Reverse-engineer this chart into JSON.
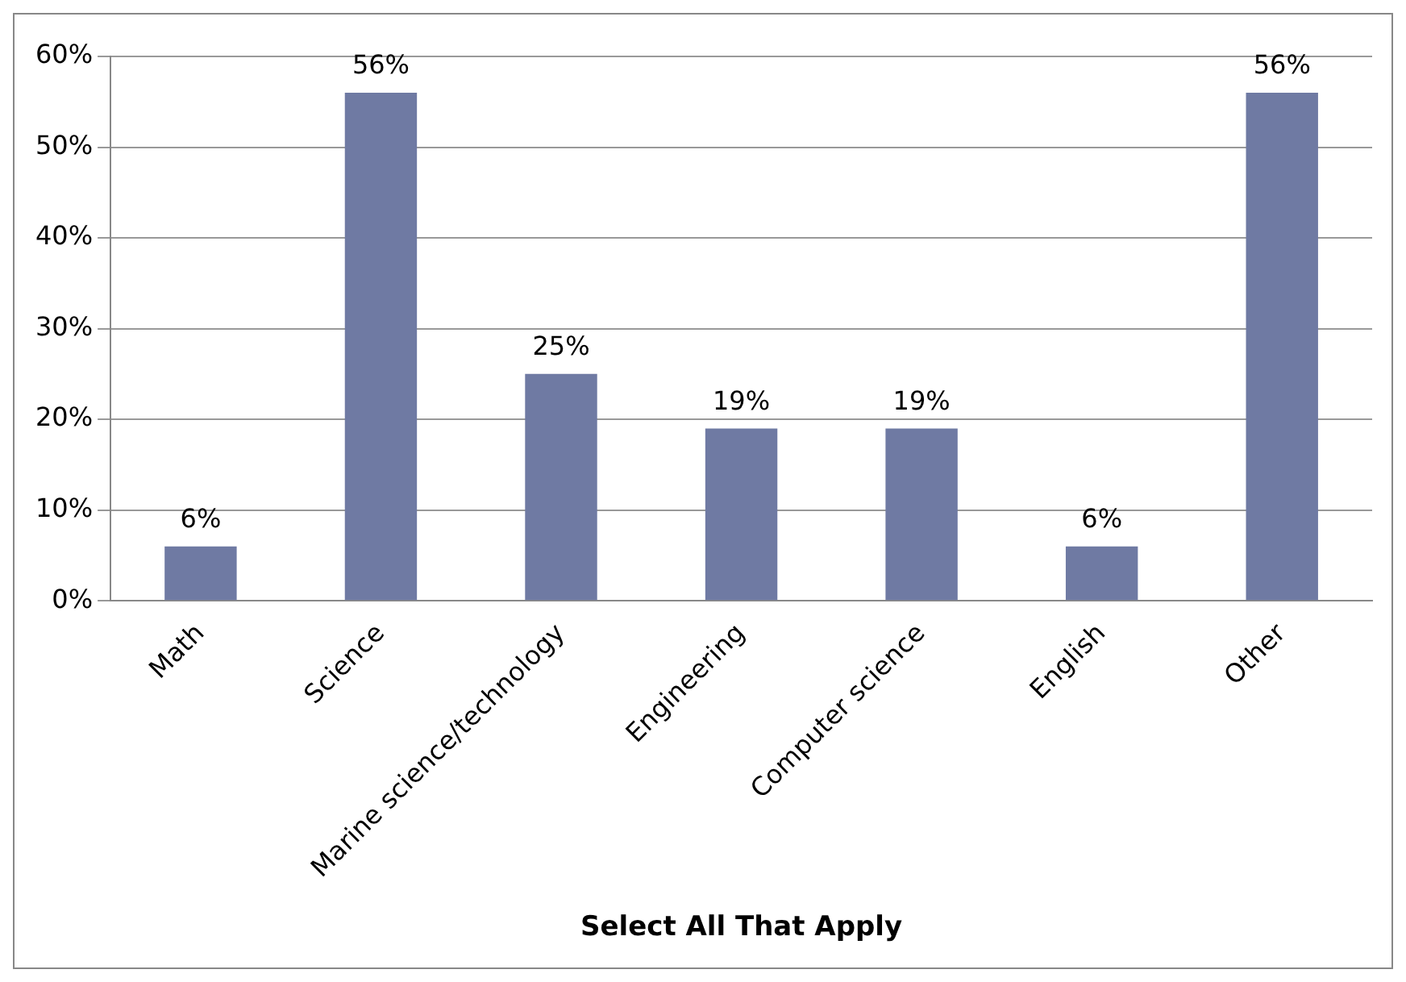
{
  "chart_data": {
    "type": "bar",
    "xlabel": "Select All That Apply",
    "categories": [
      "Math",
      "Science",
      "Marine science/technology",
      "Engineering",
      "Computer science",
      "English",
      "Other"
    ],
    "values": [
      6,
      56,
      25,
      19,
      19,
      6,
      56
    ],
    "value_labels": [
      "6%",
      "56%",
      "25%",
      "19%",
      "19%",
      "6%",
      "56%"
    ],
    "color": "#6f7aa3",
    "ylim": [
      0,
      60
    ],
    "yticks": [
      {
        "value": 0,
        "label": "0%"
      },
      {
        "value": 10,
        "label": "10%"
      },
      {
        "value": 20,
        "label": "20%"
      },
      {
        "value": 30,
        "label": "30%"
      },
      {
        "value": 40,
        "label": "40%"
      },
      {
        "value": 50,
        "label": "50%"
      },
      {
        "value": 60,
        "label": "60%"
      }
    ],
    "grid": "y",
    "legend": false
  }
}
